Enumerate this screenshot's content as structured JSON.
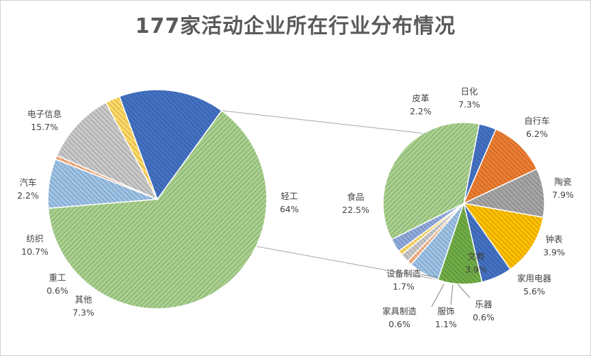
{
  "chart_data": {
    "type": "pie",
    "subtype": "pie-of-pie",
    "title": "177家活动企业所在行业分布情况",
    "legend": "none",
    "primary": {
      "slices": [
        {
          "name": "轻工",
          "value": 64,
          "label": "64%",
          "color": "#a9d18e",
          "pattern": "diag-right",
          "exploded_to_secondary": true
        },
        {
          "name": "其他",
          "value": 7.3,
          "label": "7.3%",
          "color": "#9dc3e6",
          "pattern": "diag-left"
        },
        {
          "name": "重工",
          "value": 0.6,
          "label": "0.6%",
          "color": "#f4b183",
          "pattern": "diag-left"
        },
        {
          "name": "纺织",
          "value": 10.7,
          "label": "10.7%",
          "color": "#c9c9c9",
          "pattern": "diag-left"
        },
        {
          "name": "汽车",
          "value": 2.2,
          "label": "2.2%",
          "color": "#ffd966",
          "pattern": "diag-left"
        },
        {
          "name": "电子信息",
          "value": 15.7,
          "label": "15.7%",
          "color": "#4472c4",
          "pattern": "diag-left"
        }
      ]
    },
    "secondary": {
      "parent": "轻工",
      "slices": [
        {
          "name": "皮革",
          "value": 2.2,
          "label": "2.2%",
          "color": "#4472c4",
          "pattern": "diag-left"
        },
        {
          "name": "日化",
          "value": 7.3,
          "label": "7.3%",
          "color": "#ed7d31",
          "pattern": "diag-left"
        },
        {
          "name": "自行车",
          "value": 6.2,
          "label": "6.2%",
          "color": "#a5a5a5",
          "pattern": "diag-left"
        },
        {
          "name": "陶瓷",
          "value": 7.9,
          "label": "7.9%",
          "color": "#ffc000",
          "pattern": "diag-left"
        },
        {
          "name": "钟表",
          "value": 3.9,
          "label": "3.9%",
          "color": "#4472c4",
          "pattern": "diag-left"
        },
        {
          "name": "家用电器",
          "value": 5.6,
          "label": "5.6%",
          "color": "#70ad47",
          "pattern": "diag-left"
        },
        {
          "name": "文教",
          "value": 3.9,
          "label": "3.9%",
          "color": "#9dc3e6",
          "pattern": "diag-left"
        },
        {
          "name": "乐器",
          "value": 0.6,
          "label": "0.6%",
          "color": "#f4b183",
          "pattern": "diag-left"
        },
        {
          "name": "服饰",
          "value": 1.1,
          "label": "1.1%",
          "color": "#c9c9c9",
          "pattern": "diag-left"
        },
        {
          "name": "家具制造",
          "value": 0.6,
          "label": "0.6%",
          "color": "#ffd966",
          "pattern": "diag-left"
        },
        {
          "name": "设备制造",
          "value": 1.7,
          "label": "1.7%",
          "color": "#8faadc",
          "pattern": "diag-left"
        },
        {
          "name": "食品",
          "value": 22.5,
          "label": "22.5%",
          "color": "#a9d18e",
          "pattern": "diag-right"
        }
      ]
    }
  }
}
